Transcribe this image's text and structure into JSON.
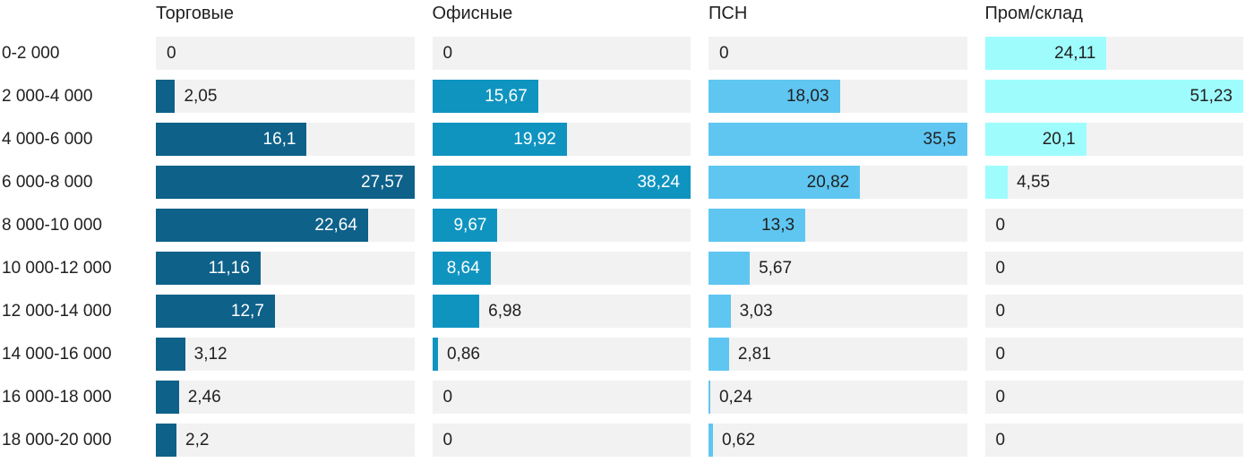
{
  "chart_data": {
    "type": "bar",
    "orientation": "horizontal",
    "layout": "small-multiples (4 columns, shared category axis on left)",
    "scaling": "each column scaled independently to its own max value",
    "grid": false,
    "legend": "none (column headers act as series names)",
    "track_color": "#f2f2f2",
    "outside_text_color": "#212121",
    "inside_label_threshold_pct": 20,
    "value_decimal_separator": ",",
    "categories": [
      "0-2 000",
      "2 000-4 000",
      "4 000-6 000",
      "6 000-8 000",
      "8 000-10 000",
      "10 000-12 000",
      "12 000-14 000",
      "14 000-16 000",
      "16 000-18 000",
      "18 000-20 000"
    ],
    "series": [
      {
        "name": "Торговые",
        "color": "#0e6189",
        "inside_text_color": "#ffffff",
        "values": [
          0,
          2.05,
          16.1,
          27.57,
          22.64,
          11.16,
          12.7,
          3.12,
          2.46,
          2.2
        ],
        "labels": [
          "0",
          "2,05",
          "16,1",
          "27,57",
          "22,64",
          "11,16",
          "12,7",
          "3,12",
          "2,46",
          "2,2"
        ]
      },
      {
        "name": "Офисные",
        "color": "#0f94c0",
        "inside_text_color": "#ffffff",
        "values": [
          0,
          15.67,
          19.92,
          38.24,
          9.67,
          8.64,
          6.98,
          0.86,
          0,
          0
        ],
        "labels": [
          "0",
          "15,67",
          "19,92",
          "38,24",
          "9,67",
          "8,64",
          "6,98",
          "0,86",
          "0",
          "0"
        ]
      },
      {
        "name": "ПСН",
        "color": "#5fc6f1",
        "inside_text_color": "#212121",
        "values": [
          0,
          18.03,
          35.5,
          20.82,
          13.3,
          5.67,
          3.03,
          2.81,
          0.24,
          0.62
        ],
        "labels": [
          "0",
          "18,03",
          "35,5",
          "20,82",
          "13,3",
          "5,67",
          "3,03",
          "2,81",
          "0,24",
          "0,62"
        ]
      },
      {
        "name": "Пром/склад",
        "color": "#9ffcfd",
        "inside_text_color": "#212121",
        "values": [
          24.11,
          51.23,
          20.1,
          4.55,
          0,
          0,
          0,
          0,
          0,
          0
        ],
        "labels": [
          "24,11",
          "51,23",
          "20,1",
          "4,55",
          "0",
          "0",
          "0",
          "0",
          "0",
          "0"
        ]
      }
    ]
  }
}
